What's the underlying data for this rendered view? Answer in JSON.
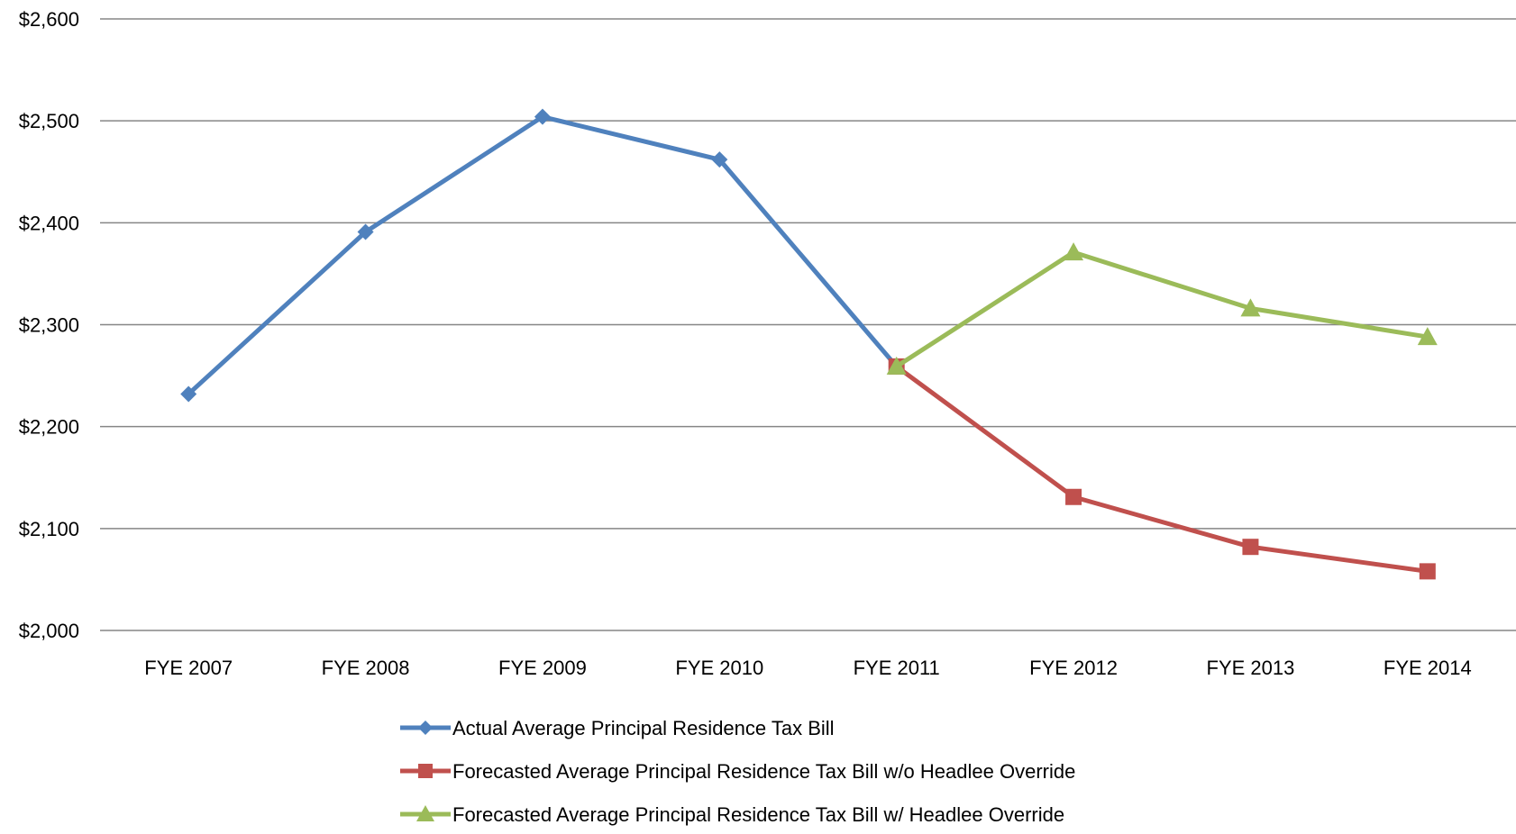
{
  "chart_data": {
    "type": "line",
    "title": "",
    "xlabel": "",
    "ylabel": "",
    "categories": [
      "FYE 2007",
      "FYE 2008",
      "FYE 2009",
      "FYE 2010",
      "FYE 2011",
      "FYE 2012",
      "FYE 2013",
      "FYE 2014"
    ],
    "ylim": [
      2000,
      2600
    ],
    "yticks": [
      2000,
      2100,
      2200,
      2300,
      2400,
      2500,
      2600
    ],
    "ytick_labels": [
      "$2,000",
      "$2,100",
      "$2,200",
      "$2,300",
      "$2,400",
      "$2,500",
      "$2,600"
    ],
    "grid": true,
    "legend_position": "bottom",
    "series": [
      {
        "name": "Actual Average Principal Residence Tax Bill",
        "color": "#4F81BD",
        "marker": "diamond",
        "values": [
          2232,
          2391,
          2504,
          2462,
          2259,
          null,
          null,
          null
        ]
      },
      {
        "name": "Forecasted Average Principal Residence Tax Bill w/o Headlee Override",
        "color": "#C0504D",
        "marker": "square",
        "values": [
          null,
          null,
          null,
          null,
          2259,
          2131,
          2082,
          2058
        ]
      },
      {
        "name": "Forecasted Average Principal Residence Tax Bill w/ Headlee Override",
        "color": "#9BBB59",
        "marker": "triangle",
        "values": [
          null,
          null,
          null,
          null,
          2259,
          2371,
          2316,
          2288
        ]
      }
    ]
  }
}
